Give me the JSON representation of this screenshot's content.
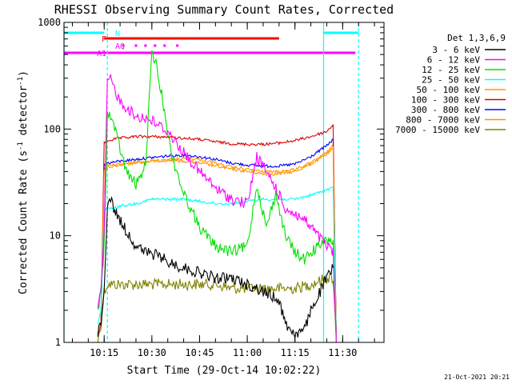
{
  "chart_data": {
    "type": "line",
    "title": "RHESSI Observing Summary Count Rates, Corrected",
    "xlabel": "Start Time (29-Oct-14 10:02:22)",
    "ylabel_main": "Corrected Count Rate (s",
    "ylabel_sup1": "-1",
    "ylabel_mid": " detector",
    "ylabel_sup2": "-1",
    "ylabel_end": ")",
    "yscale": "log",
    "ylim": [
      1,
      1000
    ],
    "xlim": [
      "10:02:22",
      "11:43:00"
    ],
    "x_ticks": [
      "10:15",
      "10:30",
      "10:45",
      "11:00",
      "11:15",
      "11:30"
    ],
    "y_ticks": [
      "1",
      "10",
      "100",
      "1000"
    ],
    "legend_title": "Det 1,3,6,9",
    "legend_position": "right",
    "series": [
      {
        "name": "3 - 6 keV",
        "color": "#000000",
        "x": [
          "10:13",
          "10:14",
          "10:15",
          "10:16",
          "10:17",
          "10:18",
          "10:20",
          "10:22",
          "10:25",
          "10:28",
          "10:32",
          "10:36",
          "10:40",
          "10:45",
          "10:50",
          "10:55",
          "11:00",
          "11:05",
          "11:10",
          "11:12",
          "11:15",
          "11:18",
          "11:20",
          "11:25",
          "11:27"
        ],
        "y": [
          1.2,
          1.5,
          3,
          20,
          22,
          18,
          14,
          11,
          8,
          7,
          6.5,
          5.5,
          5,
          4.5,
          4,
          4,
          3.5,
          3,
          2.5,
          1.5,
          1.2,
          1.3,
          2,
          4,
          5
        ]
      },
      {
        "name": "6 - 12 keV",
        "color": "#ff00ff",
        "x": [
          "10:13",
          "10:14",
          "10:15",
          "10:16",
          "10:17",
          "10:18",
          "10:20",
          "10:22",
          "10:25",
          "10:27",
          "10:30",
          "10:35",
          "10:40",
          "10:45",
          "10:50",
          "10:55",
          "11:00",
          "11:03",
          "11:06",
          "11:09",
          "11:12",
          "11:15",
          "11:18",
          "11:20",
          "11:25",
          "11:27",
          "11:28"
        ],
        "y": [
          2,
          3,
          10,
          300,
          290,
          250,
          180,
          160,
          130,
          130,
          120,
          95,
          60,
          40,
          28,
          22,
          20,
          55,
          40,
          28,
          18,
          16,
          14,
          12,
          8,
          7,
          1
        ]
      },
      {
        "name": "12 - 25 keV",
        "color": "#00e000",
        "x": [
          "10:13",
          "10:14",
          "10:15",
          "10:16",
          "10:17",
          "10:18",
          "10:20",
          "10:22",
          "10:25",
          "10:28",
          "10:30",
          "10:31",
          "10:34",
          "10:36",
          "10:40",
          "10:45",
          "10:50",
          "10:55",
          "11:00",
          "11:03",
          "11:06",
          "11:09",
          "11:12",
          "11:15",
          "11:18",
          "11:20",
          "11:25",
          "11:27",
          "11:28"
        ],
        "y": [
          2,
          3,
          8,
          140,
          130,
          110,
          65,
          40,
          30,
          45,
          500,
          450,
          150,
          60,
          25,
          12,
          8,
          7,
          8,
          30,
          12,
          25,
          10,
          7,
          6,
          7,
          9,
          9,
          1
        ]
      },
      {
        "name": "25 - 50 keV",
        "color": "#00ffff",
        "x": [
          "10:13",
          "10:14",
          "10:15",
          "10:16",
          "10:18",
          "10:20",
          "10:25",
          "10:30",
          "10:35",
          "10:40",
          "10:45",
          "10:50",
          "10:55",
          "11:00",
          "11:05",
          "11:10",
          "11:15",
          "11:20",
          "11:25",
          "11:27",
          "11:28"
        ],
        "y": [
          1.5,
          2,
          17,
          18,
          18,
          19,
          20,
          22,
          22,
          22,
          21,
          20,
          20,
          21,
          22,
          22,
          22,
          24,
          27,
          28,
          1
        ]
      },
      {
        "name": "50 - 100 keV",
        "color": "#ff9a00",
        "x": [
          "10:13",
          "10:14",
          "10:15",
          "10:16",
          "10:20",
          "10:25",
          "10:30",
          "10:35",
          "10:40",
          "10:45",
          "10:50",
          "10:55",
          "11:00",
          "11:05",
          "11:10",
          "11:15",
          "11:20",
          "11:25",
          "11:27",
          "11:28"
        ],
        "y": [
          1.2,
          1.5,
          40,
          44,
          46,
          48,
          50,
          52,
          53,
          52,
          48,
          44,
          42,
          40,
          40,
          42,
          48,
          60,
          70,
          1
        ]
      },
      {
        "name": "100 - 300 keV",
        "color": "#e00000",
        "x": [
          "10:13",
          "10:14",
          "10:15",
          "10:16",
          "10:20",
          "10:25",
          "10:30",
          "10:35",
          "10:40",
          "10:45",
          "10:50",
          "10:55",
          "11:00",
          "11:05",
          "11:10",
          "11:15",
          "11:20",
          "11:25",
          "11:27",
          "11:28"
        ],
        "y": [
          1.2,
          1.5,
          75,
          78,
          82,
          85,
          85,
          84,
          82,
          80,
          76,
          73,
          72,
          72,
          74,
          78,
          85,
          95,
          110,
          1
        ]
      },
      {
        "name": "300 - 800 keV",
        "color": "#0000ff",
        "x": [
          "10:13",
          "10:14",
          "10:15",
          "10:16",
          "10:20",
          "10:25",
          "10:30",
          "10:35",
          "10:40",
          "10:45",
          "10:50",
          "10:55",
          "11:00",
          "11:05",
          "11:10",
          "11:15",
          "11:20",
          "11:25",
          "11:27",
          "11:28"
        ],
        "y": [
          1.2,
          1.5,
          46,
          48,
          50,
          52,
          54,
          56,
          57,
          55,
          52,
          48,
          46,
          45,
          45,
          47,
          55,
          70,
          80,
          1
        ]
      },
      {
        "name": "800 - 7000 keV",
        "color": "#ff9000",
        "x": [
          "10:13",
          "10:14",
          "10:15",
          "10:16",
          "10:20",
          "10:25",
          "10:30",
          "10:35",
          "10:40",
          "10:45",
          "10:50",
          "10:55",
          "11:00",
          "11:05",
          "11:10",
          "11:15",
          "11:20",
          "11:25",
          "11:27",
          "11:28"
        ],
        "y": [
          1.2,
          1.5,
          43,
          45,
          47,
          49,
          50,
          51,
          50,
          48,
          45,
          42,
          40,
          38,
          38,
          40,
          47,
          58,
          66,
          1
        ]
      },
      {
        "name": "7000 - 15000 keV",
        "color": "#808000",
        "x": [
          "10:13",
          "10:14",
          "10:15",
          "10:16",
          "10:20",
          "10:25",
          "10:30",
          "10:35",
          "10:40",
          "10:45",
          "10:50",
          "10:55",
          "11:00",
          "11:05",
          "11:10",
          "11:15",
          "11:20",
          "11:25",
          "11:27",
          "11:28"
        ],
        "y": [
          1,
          1.5,
          3,
          3.5,
          3.5,
          3.5,
          3.5,
          3.5,
          3.5,
          3.5,
          3.5,
          3.2,
          3.2,
          3.2,
          3.2,
          3.2,
          3.5,
          4,
          4,
          1
        ]
      }
    ],
    "flag_bars": [
      {
        "label": "N",
        "color": "#00ffff",
        "segments": [
          [
            "10:02:22",
            "10:15"
          ],
          [
            "11:24",
            "11:35"
          ]
        ]
      },
      {
        "label": "F",
        "color": "#ff0000",
        "segments": [
          [
            "10:15",
            "11:10"
          ]
        ]
      },
      {
        "label": "AQ",
        "color": "#ff00ff",
        "segments": [],
        "dots": [
          "10:21",
          "10:25",
          "10:28",
          "10:31",
          "10:34",
          "10:38"
        ]
      },
      {
        "label": "A1",
        "color": "#ff00ff",
        "segments": [
          [
            "10:02:22",
            "11:34"
          ]
        ]
      }
    ],
    "vertical_lines": [
      {
        "x": "10:02:22",
        "color": "#00ffff",
        "style": "solid"
      },
      {
        "x": "10:16",
        "color": "#00ffff",
        "style": "dashed"
      },
      {
        "x": "11:24",
        "color": "#00ffff",
        "style": "solid"
      },
      {
        "x": "11:35",
        "color": "#00ffff",
        "style": "dashed"
      }
    ]
  },
  "footer": {
    "date_stamp": "21-Oct-2021 20:21"
  }
}
